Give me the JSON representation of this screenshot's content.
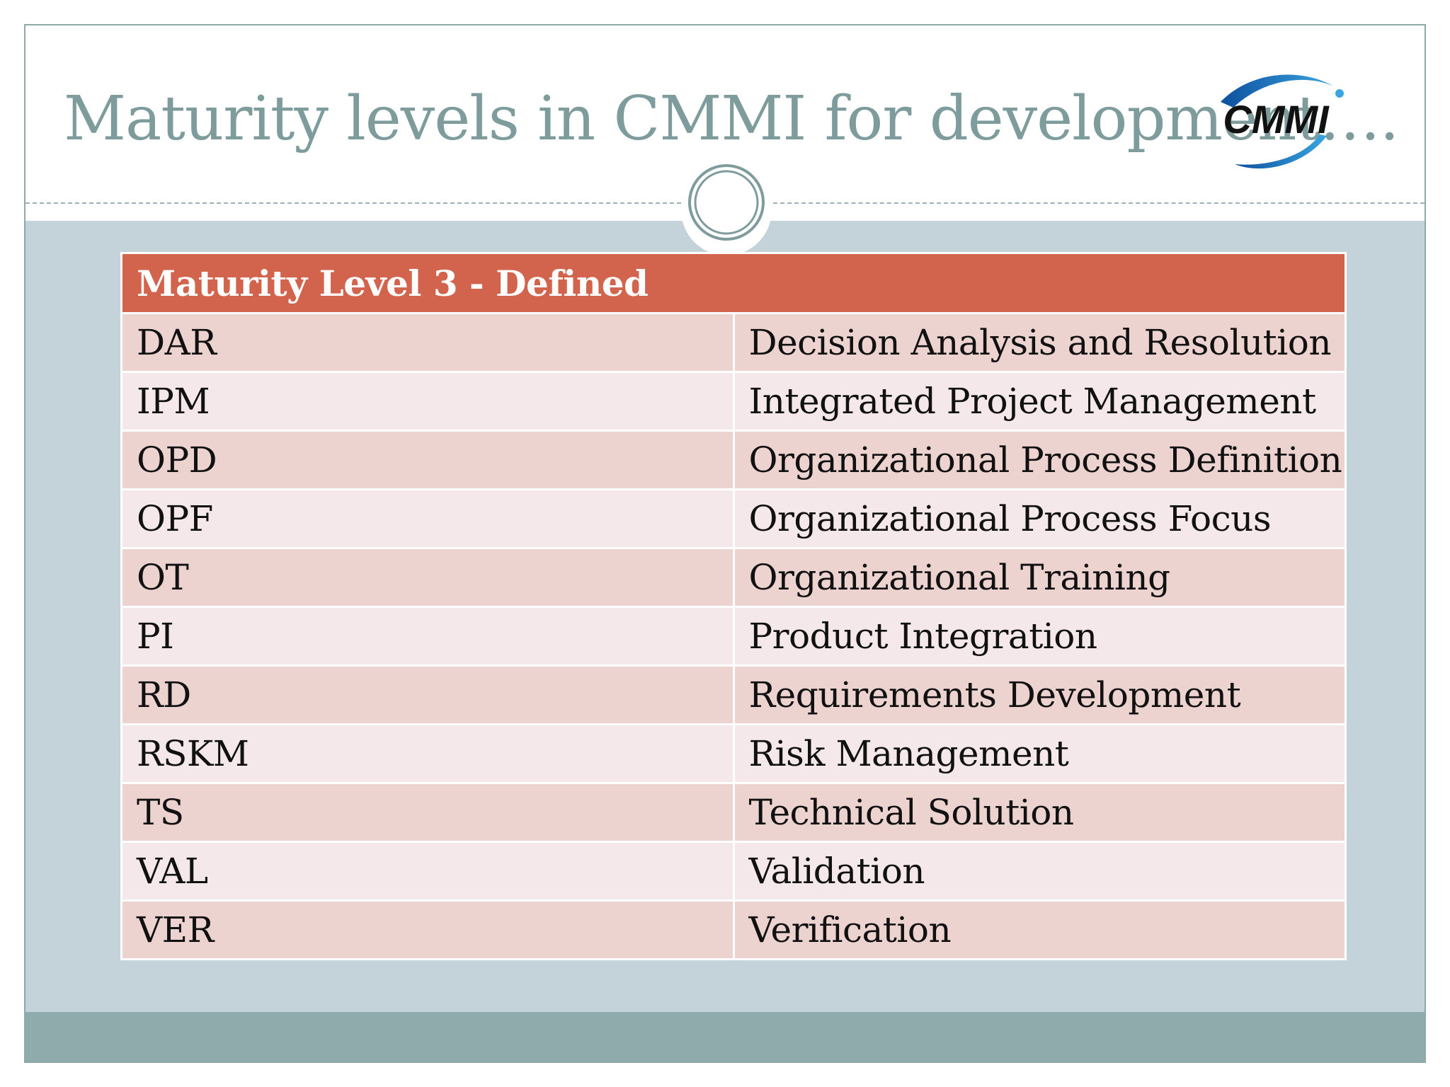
{
  "slide": {
    "title": "Maturity levels in CMMI for development….",
    "logo_text": "CMMI",
    "colors": {
      "title": "#7f9c9c",
      "header_row": "#d2634c",
      "row_odd": "#edd3d0",
      "row_even": "#f5e8ea",
      "background": "#c4d3d9",
      "footer_band": "#8fabab"
    }
  },
  "table": {
    "header": "Maturity Level 3 - Defined",
    "rows": [
      {
        "abbr": "DAR",
        "name": "Decision Analysis and Resolution"
      },
      {
        "abbr": "IPM",
        "name": "Integrated Project Management"
      },
      {
        "abbr": "OPD",
        "name": "Organizational Process Definition"
      },
      {
        "abbr": "OPF",
        "name": "Organizational Process Focus"
      },
      {
        "abbr": "OT",
        "name": "Organizational Training"
      },
      {
        "abbr": "PI",
        "name": "Product Integration"
      },
      {
        "abbr": "RD",
        "name": "Requirements Development"
      },
      {
        "abbr": "RSKM",
        "name": "Risk Management"
      },
      {
        "abbr": "TS",
        "name": "Technical Solution"
      },
      {
        "abbr": "VAL",
        "name": "Validation"
      },
      {
        "abbr": "VER",
        "name": "Verification"
      }
    ]
  }
}
